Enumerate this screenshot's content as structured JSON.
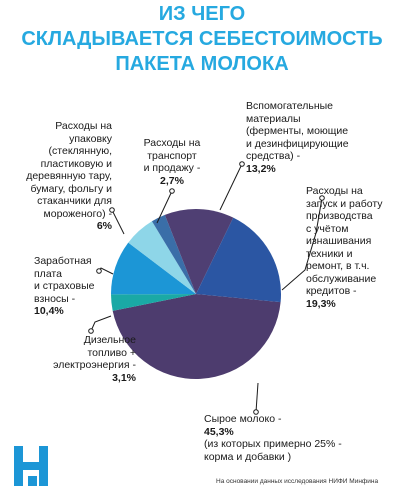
{
  "title": [
    "ИЗ ЧЕГО",
    "СКЛАДЫВАЕТСЯ СЕБЕСТОИМОСТЬ",
    "ПАКЕТА МОЛОКА"
  ],
  "source": "На основании данных исследования НИФИ Минфина",
  "colors": {
    "title": "#26a9e0",
    "milk": "#4d3c6e",
    "diesel": "#1aa9a5",
    "salary": "#1c96d6",
    "packaging": "#8ed6e8",
    "transport": "#3a6ea8",
    "auxiliary": "#4f3f73",
    "equipment": "#2b56a3"
  },
  "chart_data": {
    "type": "pie",
    "title": "ИЗ ЧЕГО СКЛАДЫВАЕТСЯ СЕБЕСТОИМОСТЬ ПАКЕТА МОЛОКА",
    "slices": [
      {
        "key": "milk",
        "label": [
          "Сырое молоко -"
        ],
        "value_text": "45,3%",
        "note": [
          "(из которых примерно 25% -",
          "корма и добавки )"
        ],
        "value": 45.3,
        "color": "#4d3c6e"
      },
      {
        "key": "diesel",
        "label": [
          "Дизельное",
          "топливо +",
          "электроэнергия -"
        ],
        "value_text": "3,1%",
        "value": 3.1,
        "color": "#1aa9a5"
      },
      {
        "key": "salary",
        "label": [
          "Заработная",
          "плата",
          "и страховые",
          "взносы -"
        ],
        "value_text": "10,4%",
        "value": 10.4,
        "color": "#1c96d6"
      },
      {
        "key": "packaging",
        "label": [
          "Расходы на",
          "упаковку",
          "(стеклянную,",
          "пластиковую и",
          "деревянную тару,",
          "бумагу, фольгу и",
          "стаканчики для",
          "мороженого) -"
        ],
        "value_text": "6%",
        "value": 6.0,
        "color": "#8ed6e8"
      },
      {
        "key": "transport",
        "label": [
          "Расходы на",
          "транспорт",
          "и продажу -"
        ],
        "value_text": "2,7%",
        "value": 2.7,
        "color": "#3a6ea8"
      },
      {
        "key": "auxiliary",
        "label": [
          "Вспомогательные",
          "материалы",
          "(ферменты, моющие",
          "и дезинфицирующие",
          "средства) -"
        ],
        "value_text": "13,2%",
        "value": 13.2,
        "color": "#4f3f73"
      },
      {
        "key": "equipment",
        "label": [
          "Расходы на",
          "запуск и работу",
          "производства",
          "с учётом",
          "изнашивания",
          "техники и",
          "ремонт, в т.ч.",
          "обслуживание",
          "кредитов -"
        ],
        "value_text": "19,3%",
        "value": 19.3,
        "color": "#2b56a3"
      }
    ]
  }
}
